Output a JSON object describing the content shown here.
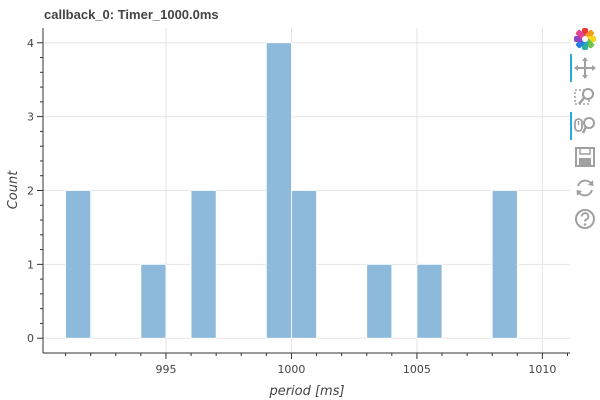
{
  "chart_data": {
    "type": "bar",
    "title": "callback_0: Timer_1000.0ms",
    "xlabel": "period [ms]",
    "ylabel": "Count",
    "xlim": [
      990.1,
      1011.1
    ],
    "ylim": [
      -0.2,
      4.2
    ],
    "xticks": [
      995,
      1000,
      1005,
      1010
    ],
    "yticks": [
      0,
      1,
      2,
      3,
      4
    ],
    "bin_width": 1,
    "bins": [
      {
        "start": 991,
        "count": 2
      },
      {
        "start": 994,
        "count": 1
      },
      {
        "start": 996,
        "count": 2
      },
      {
        "start": 999,
        "count": 4
      },
      {
        "start": 1000,
        "count": 2
      },
      {
        "start": 1003,
        "count": 1
      },
      {
        "start": 1005,
        "count": 1
      },
      {
        "start": 1008,
        "count": 2
      }
    ],
    "bar_color": "#8dbadb",
    "grid": true
  },
  "toolbar": {
    "tools": [
      {
        "name": "bokeh-logo-icon",
        "active": false
      },
      {
        "name": "pan-icon",
        "active": true
      },
      {
        "name": "box-zoom-icon",
        "active": false
      },
      {
        "name": "wheel-zoom-icon",
        "active": true
      },
      {
        "name": "save-icon",
        "active": false
      },
      {
        "name": "reset-icon",
        "active": false
      },
      {
        "name": "help-icon",
        "active": false
      }
    ]
  }
}
